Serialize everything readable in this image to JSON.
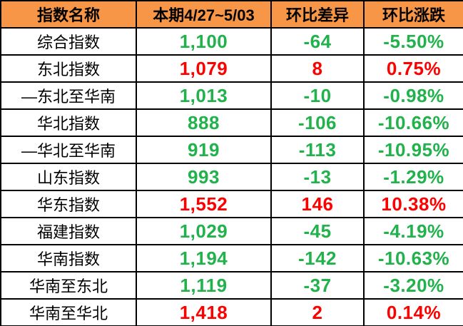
{
  "colors": {
    "header_bg": "#F79646",
    "header_text": "#000000",
    "up_red": "#FF0000",
    "down_green": "#21B24C",
    "border": "#000000",
    "row_bg": "#FFFFFF"
  },
  "chart_data": {
    "type": "table",
    "columns": [
      "指数名称",
      "本期4/27~5/03",
      "环比差异",
      "环比涨跌"
    ],
    "rows": [
      {
        "name": "综合指数",
        "current": "1,100",
        "diff": "-64",
        "change": "-5.50%",
        "trend": "down"
      },
      {
        "name": "东北指数",
        "current": "1,079",
        "diff": "8",
        "change": "0.75%",
        "trend": "up"
      },
      {
        "name": "—东北至华南",
        "current": "1,013",
        "diff": "-10",
        "change": "-0.98%",
        "trend": "down"
      },
      {
        "name": "华北指数",
        "current": "888",
        "diff": "-106",
        "change": "-10.66%",
        "trend": "down"
      },
      {
        "name": "—华北至华南",
        "current": "919",
        "diff": "-113",
        "change": "-10.95%",
        "trend": "down"
      },
      {
        "name": "山东指数",
        "current": "993",
        "diff": "-13",
        "change": "-1.29%",
        "trend": "down"
      },
      {
        "name": "华东指数",
        "current": "1,552",
        "diff": "146",
        "change": "10.38%",
        "trend": "up"
      },
      {
        "name": "福建指数",
        "current": "1,029",
        "diff": "-45",
        "change": "-4.19%",
        "trend": "down"
      },
      {
        "name": "华南指数",
        "current": "1,194",
        "diff": "-142",
        "change": "-10.63%",
        "trend": "down"
      },
      {
        "name": "华南至东北",
        "current": "1,119",
        "diff": "-37",
        "change": "-3.20%",
        "trend": "down"
      },
      {
        "name": "华南至华北",
        "current": "1,418",
        "diff": "2",
        "change": "0.14%",
        "trend": "up"
      }
    ],
    "legend_note_semantics": "green = decline vs previous period, red = rise vs previous period"
  }
}
